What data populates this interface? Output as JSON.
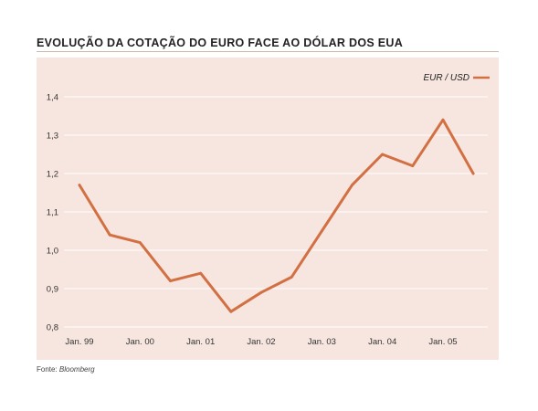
{
  "chart_title": "EVOLUÇÃO DA COTAÇÃO DO EURO FACE AO DÓLAR DOS EUA",
  "source_label": "Fonte:",
  "source_name": "Bloomberg",
  "colors": {
    "background": "#f7e6df",
    "line": "#d27044",
    "grid": "#ffffff"
  },
  "chart_data": {
    "type": "line",
    "title": "EVOLUÇÃO DA COTAÇÃO DO EURO FACE AO DÓLAR DOS EUA",
    "xlabel": "",
    "ylabel": "",
    "x_ticks": [
      "Jan. 99",
      "Jan. 00",
      "Jan. 01",
      "Jan. 02",
      "Jan. 03",
      "Jan. 04",
      "Jan. 05"
    ],
    "x_tick_values": [
      1999.0,
      2000.0,
      2001.0,
      2002.0,
      2003.0,
      2004.0,
      2005.0
    ],
    "y_ticks": [
      "1,4",
      "1,3",
      "1,2",
      "1,1",
      "1,0",
      "0,9",
      "0,8"
    ],
    "y_tick_values": [
      1.4,
      1.3,
      1.2,
      1.1,
      1.0,
      0.9,
      0.8
    ],
    "ylim": [
      0.8,
      1.4
    ],
    "xlim": [
      1999.0,
      2005.5
    ],
    "grid": true,
    "legend_position": "top-right",
    "series": [
      {
        "name": "EUR / USD",
        "x": [
          1999.0,
          1999.5,
          2000.0,
          2000.5,
          2001.0,
          2001.5,
          2002.0,
          2002.5,
          2003.0,
          2003.5,
          2004.0,
          2004.5,
          2005.0,
          2005.5
        ],
        "y": [
          1.17,
          1.04,
          1.02,
          0.92,
          0.94,
          0.84,
          0.89,
          0.93,
          1.05,
          1.17,
          1.25,
          1.22,
          1.34,
          1.2
        ]
      }
    ]
  }
}
